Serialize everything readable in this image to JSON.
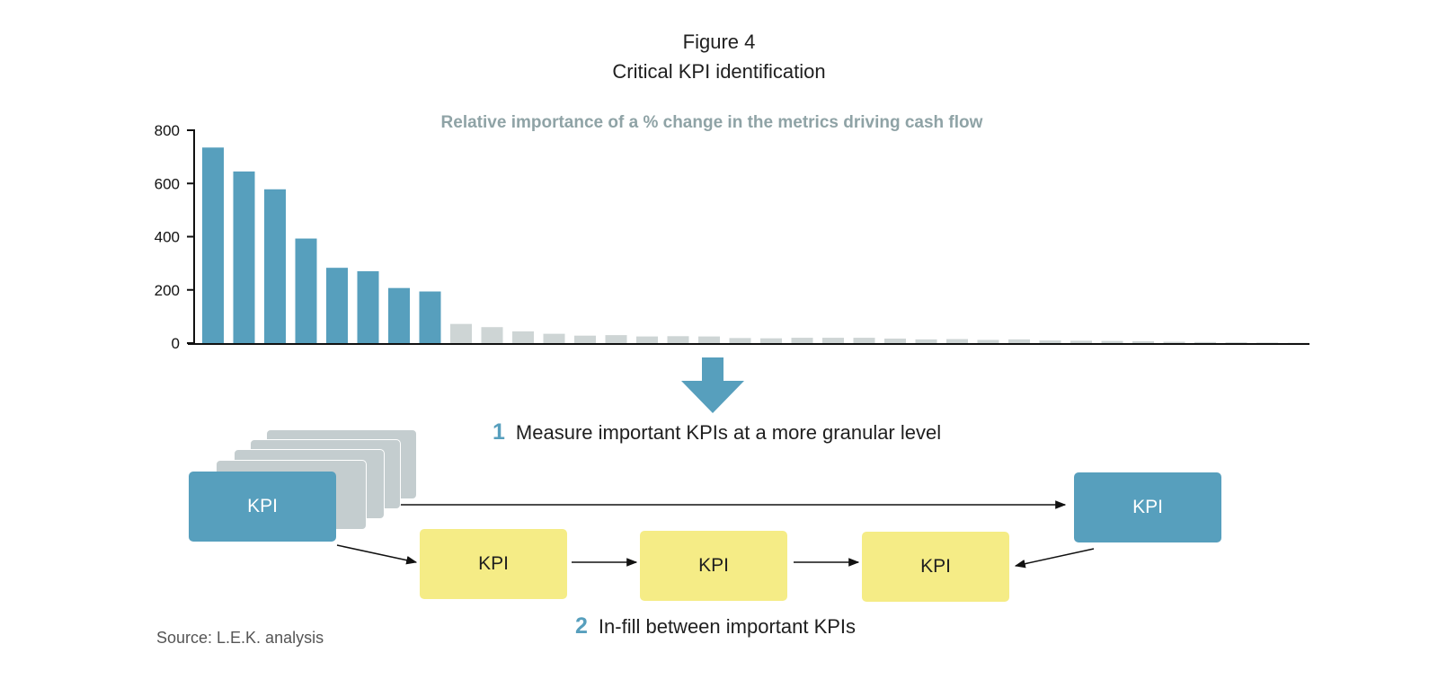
{
  "figure": {
    "number": "Figure 4",
    "title": "Critical KPI identification"
  },
  "chart_data": {
    "type": "bar",
    "title": "Relative importance of a % change in the metrics driving cash flow",
    "ylim": [
      0,
      800
    ],
    "yticks": [
      "0",
      "200",
      "400",
      "600",
      "800"
    ],
    "values": [
      735,
      645,
      578,
      393,
      283,
      270,
      207,
      194,
      72,
      60,
      44,
      35,
      28,
      30,
      25,
      26,
      25,
      19,
      18,
      20,
      20,
      20,
      17,
      14,
      15,
      12,
      14,
      10,
      9,
      8,
      7,
      5,
      4,
      3,
      2,
      1
    ],
    "highlight_count": 8,
    "colors": {
      "highlight": "#579fbd",
      "other": "#ced5d5"
    },
    "grid": false
  },
  "flow": {
    "step1": {
      "num": "1",
      "label": "Measure important KPIs at a more granular level"
    },
    "step2": {
      "num": "2",
      "label": "In-fill between important KPIs"
    },
    "kpi_label": "KPI",
    "colors": {
      "blue": "#579fbd",
      "yellow": "#f5ec86",
      "grey": "#c4cdcf"
    }
  },
  "source": "Source: L.E.K. analysis"
}
